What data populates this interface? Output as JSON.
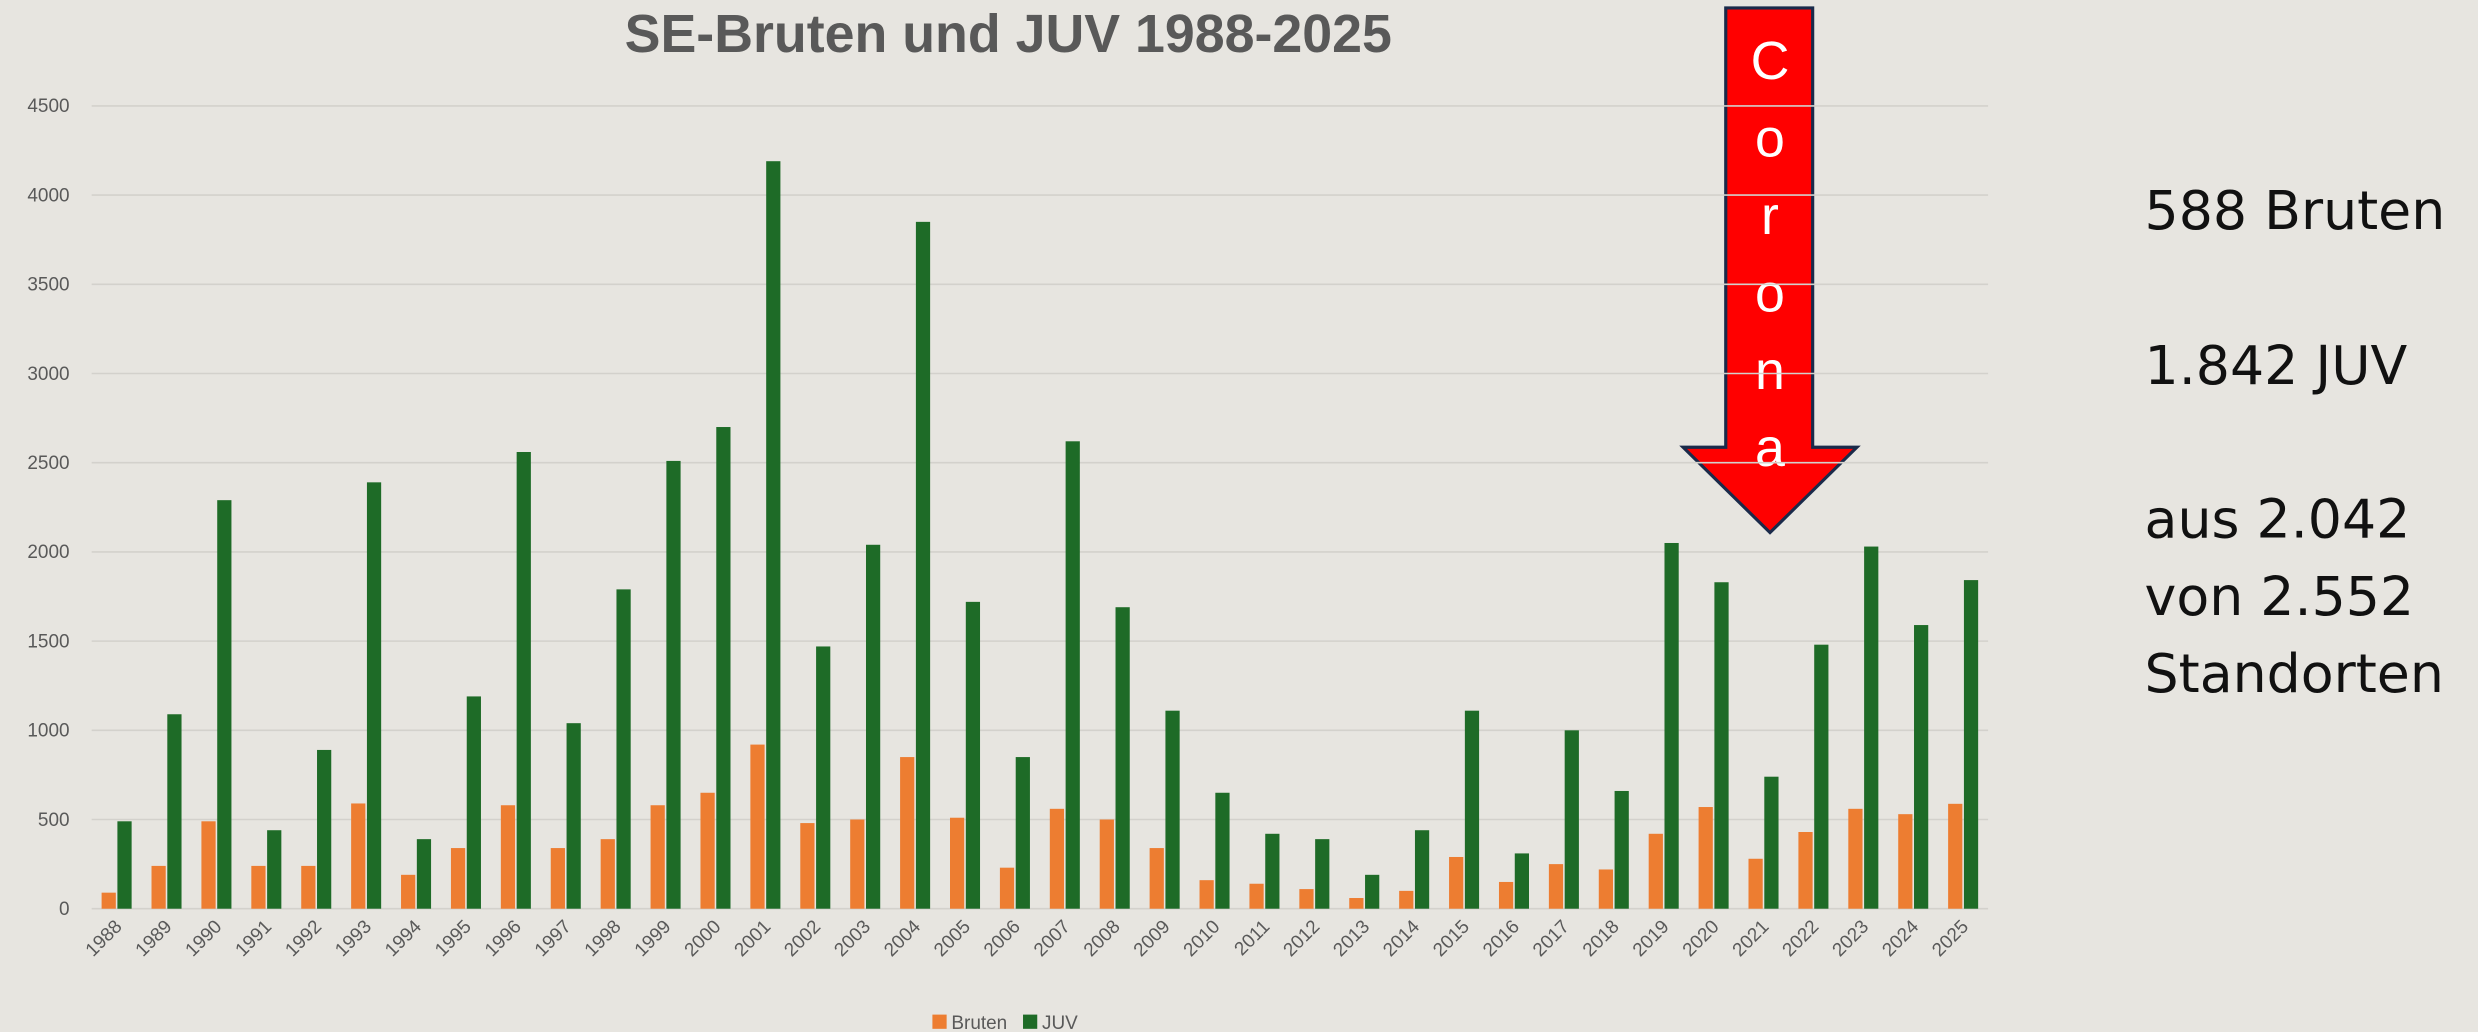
{
  "chart_data": {
    "type": "bar",
    "title": "SE-Bruten und JUV 1988-2025",
    "categories": [
      "1988",
      "1989",
      "1990",
      "1991",
      "1992",
      "1993",
      "1994",
      "1995",
      "1996",
      "1997",
      "1998",
      "1999",
      "2000",
      "2001",
      "2002",
      "2003",
      "2004",
      "2005",
      "2006",
      "2007",
      "2008",
      "2009",
      "2010",
      "2011",
      "2012",
      "2013",
      "2014",
      "2015",
      "2016",
      "2017",
      "2018",
      "2019",
      "2020",
      "2021",
      "2022",
      "2023",
      "2024",
      "2025"
    ],
    "series": [
      {
        "name": "Bruten",
        "color": "#ed7d31",
        "values": [
          90,
          240,
          490,
          240,
          240,
          590,
          190,
          340,
          580,
          340,
          390,
          580,
          650,
          920,
          480,
          500,
          850,
          510,
          230,
          560,
          500,
          340,
          160,
          140,
          110,
          60,
          100,
          290,
          150,
          250,
          220,
          420,
          570,
          280,
          430,
          560,
          530,
          588
        ]
      },
      {
        "name": "JUV",
        "color": "#1e6b27",
        "values": [
          490,
          1090,
          2290,
          440,
          890,
          2390,
          390,
          1190,
          2560,
          1040,
          1790,
          2510,
          2700,
          4190,
          1470,
          2040,
          3850,
          1720,
          850,
          2620,
          1690,
          1110,
          650,
          420,
          390,
          190,
          440,
          1110,
          310,
          1000,
          660,
          2050,
          1830,
          740,
          1480,
          2030,
          1590,
          1842
        ]
      }
    ],
    "ylim": [
      0,
      4500
    ],
    "yticks": [
      0,
      500,
      1000,
      1500,
      2000,
      2500,
      3000,
      3500,
      4000,
      4500
    ],
    "grid": true,
    "legend": "bottom",
    "annotation": "Corona",
    "side_text": [
      "588 Bruten",
      "1.842 JUV",
      "aus 2.042",
      "von 2.552",
      "Standorten"
    ]
  }
}
